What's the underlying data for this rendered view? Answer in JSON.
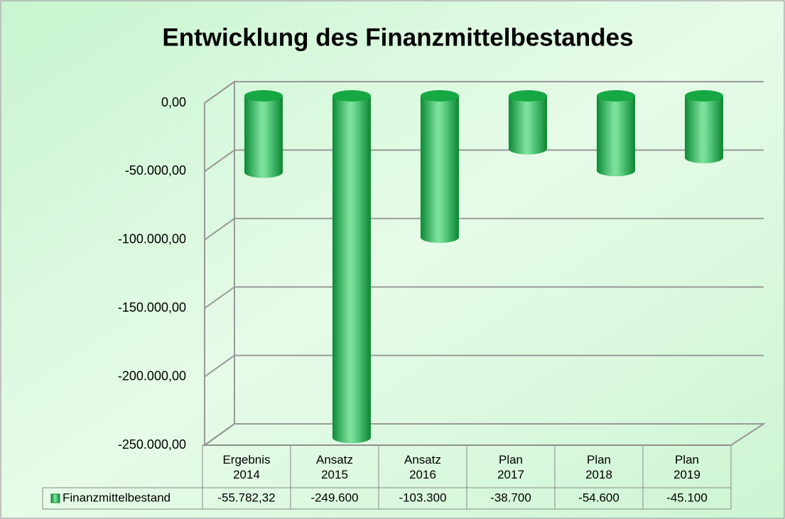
{
  "chart_data": {
    "type": "bar3d",
    "title": "Entwicklung des Finanzmittelbestandes",
    "categories": [
      "Ergebnis\n2014",
      "Ansatz\n2015",
      "Ansatz\n2016",
      "Plan\n2017",
      "Plan\n2018",
      "Plan\n2019"
    ],
    "series": [
      {
        "name": "Finanzmittelbestand",
        "color": "#17b04a",
        "values": [
          -55782.32,
          -249600,
          -103300,
          -38700,
          -54600,
          -45100
        ],
        "value_labels": [
          "-55.782,32",
          "-249.600",
          "-103.300",
          "-38.700",
          "-54.600",
          "-45.100"
        ]
      }
    ],
    "ylim": [
      -250000,
      0
    ],
    "yticks": [
      {
        "value": 0,
        "label": "0,00"
      },
      {
        "value": -50000,
        "label": "-50.000,00"
      },
      {
        "value": -100000,
        "label": "-100.000,00"
      },
      {
        "value": -150000,
        "label": "-150.000,00"
      },
      {
        "value": -200000,
        "label": "-200.000,00"
      },
      {
        "value": -250000,
        "label": "-250.000,00"
      }
    ],
    "grid": true,
    "legend": "table"
  }
}
